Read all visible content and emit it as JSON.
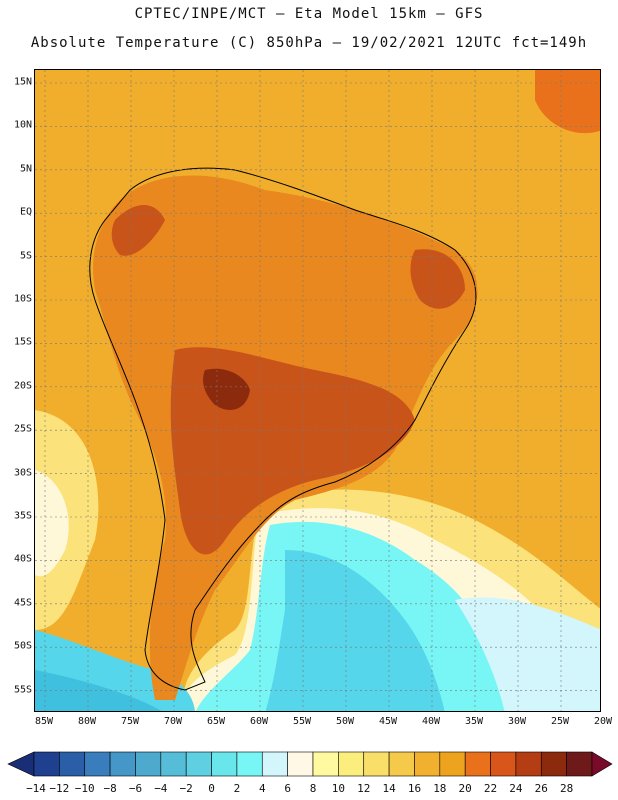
{
  "header": {
    "line1": "CPTEC/INPE/MCT –  Eta Model 15km – GFS",
    "line2": "Absolute Temperature (C) 850hPa – 19/02/2021 12UTC fct=149h"
  },
  "axes": {
    "lat_labels": [
      "15N",
      "10N",
      "5N",
      "EQ",
      "5S",
      "10S",
      "15S",
      "20S",
      "25S",
      "30S",
      "35S",
      "40S",
      "45S",
      "50S",
      "55S"
    ],
    "lon_labels": [
      "85W",
      "80W",
      "75W",
      "70W",
      "65W",
      "60W",
      "55W",
      "50W",
      "45W",
      "40W",
      "35W",
      "30W",
      "25W",
      "20W"
    ]
  },
  "colorbar": {
    "labels": [
      "-14",
      "-12",
      "-10",
      "-8",
      "-6",
      "-4",
      "-2",
      "0",
      "2",
      "4",
      "6",
      "8",
      "10",
      "12",
      "14",
      "16",
      "18",
      "20",
      "22",
      "24",
      "26",
      "28"
    ],
    "colors": [
      "#1f3f8f",
      "#2a5fa8",
      "#3a7dbd",
      "#4497c6",
      "#4ea9cf",
      "#55bdd8",
      "#5fd0e2",
      "#69e5ec",
      "#78f5f5",
      "#d2f6fc",
      "#fff8e6",
      "#fffaa0",
      "#fbee7c",
      "#f9de6a",
      "#f5c94a",
      "#f1b12f",
      "#eda31e",
      "#e9711c",
      "#d9561a",
      "#b53d14",
      "#8c2a0e",
      "#6e1a1a"
    ],
    "under_color": "#1a2e78",
    "over_color": "#7a0a2a"
  },
  "legend_colors": {
    "ocean_south": "#55d6ea",
    "ocean_cold": "#3fc0de",
    "ocean_mild": "#fef8d8",
    "ocean_yellow": "#fbe27a",
    "tropical": "#f1ae2c",
    "warm": "#e9881e",
    "hot": "#c9541a",
    "hottest": "#8c2a0e"
  }
}
